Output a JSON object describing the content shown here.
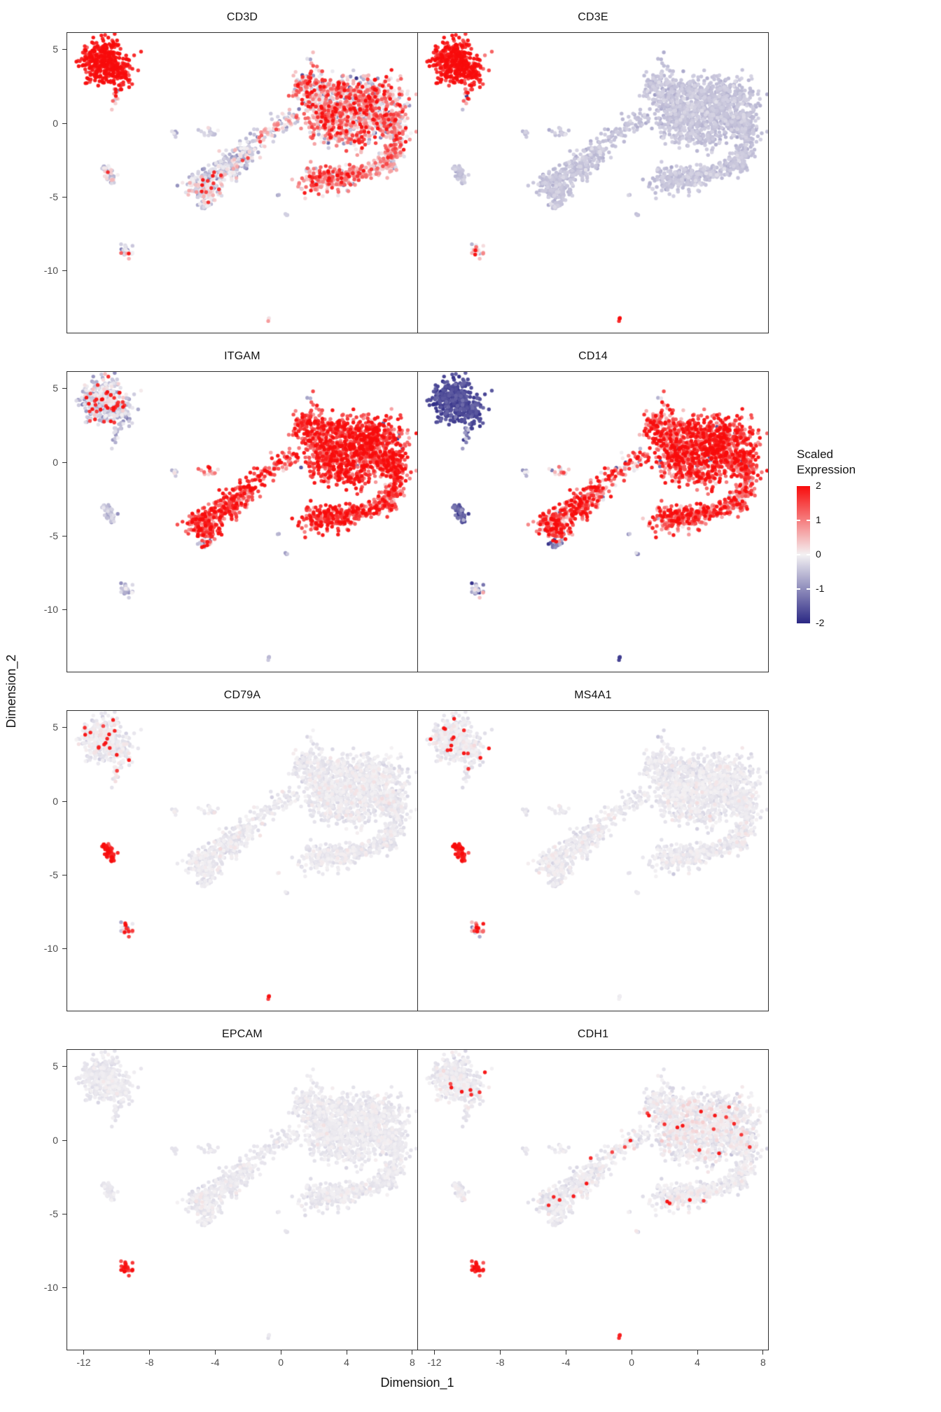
{
  "figure": {
    "xlabel": "Dimension_1",
    "ylabel": "Dimension_2"
  },
  "chart_data": {
    "type": "scatter",
    "subtype": "umap-feature-plot-grid",
    "panels": [
      "CD3D",
      "CD3E",
      "ITGAM",
      "CD14",
      "CD79A",
      "MS4A1",
      "EPCAM",
      "CDH1"
    ],
    "xlabel": "Dimension_1",
    "ylabel": "Dimension_2",
    "xlim": [
      -13,
      8.3
    ],
    "ylim": [
      -14.2,
      6.1
    ],
    "xticks": [
      -12,
      -8,
      -4,
      0,
      4,
      8
    ],
    "yticks": [
      5,
      0,
      -5,
      -10
    ],
    "grid": false,
    "legend": {
      "title": "Scaled Expression",
      "ticks": [
        2,
        1,
        0,
        -1,
        -2
      ],
      "position": "right"
    },
    "colormap": {
      "low": "#2B2884",
      "mid": "#F3F1F3",
      "high": "#F80C0C"
    },
    "baseline": {
      "CD3D": [
        -0.45,
        0.28
      ],
      "CD3E": [
        -0.5,
        0.12
      ],
      "ITGAM": [
        -0.5,
        0.28
      ],
      "CD14": [
        -0.6,
        0.45
      ],
      "CD79A": [
        -0.12,
        0.1
      ],
      "MS4A1": [
        -0.12,
        0.1
      ],
      "EPCAM": [
        -0.12,
        0.08
      ],
      "CDH1": [
        -0.12,
        0.1
      ]
    },
    "clusters": [
      {
        "id": "t-nk",
        "blobs": [
          [
            -11.3,
            4.2,
            0.6,
            0.55,
            120
          ],
          [
            -10.4,
            4.6,
            0.55,
            0.5,
            110
          ],
          [
            -10.8,
            3.4,
            0.7,
            0.45,
            90
          ],
          [
            -9.9,
            3.6,
            0.45,
            0.45,
            60
          ],
          [
            -10.9,
            5.1,
            0.35,
            0.25,
            25
          ],
          [
            -9.6,
            2.9,
            0.3,
            0.3,
            20
          ]
        ],
        "expr": {
          "CD3D": [
            1.9,
            0.3
          ],
          "CD3E": [
            1.85,
            0.3
          ],
          "ITGAM": [
            -0.45,
            0.35,
            0.1
          ],
          "CD14": [
            -1.75,
            0.2
          ],
          "CD79A": [
            -0.12,
            0.12,
            0.045
          ],
          "MS4A1": [
            -0.12,
            0.12,
            0.05
          ],
          "CDH1": [
            -0.12,
            0.1,
            0.02
          ]
        }
      },
      {
        "id": "t-tail",
        "blobs": [
          [
            -10.05,
            1.8,
            0.12,
            0.35,
            14
          ]
        ],
        "expr": {
          "CD3D": [
            0.9,
            0.9
          ],
          "CD3E": [
            0.8,
            0.9
          ],
          "CD14": [
            -1.3,
            0.5
          ],
          "CD79A": [
            -0.1,
            0.15,
            0.1
          ],
          "MS4A1": [
            -0.1,
            0.15,
            0.1
          ]
        }
      },
      {
        "id": "b-cells",
        "blobs": [
          [
            -10.55,
            -3.35,
            0.18,
            0.22,
            22
          ],
          [
            -10.3,
            -3.75,
            0.15,
            0.2,
            16
          ],
          [
            -10.75,
            -3.05,
            0.1,
            0.12,
            6
          ]
        ],
        "expr": {
          "CD3D": [
            -0.3,
            0.5,
            0.05
          ],
          "ITGAM": [
            -0.55,
            0.25
          ],
          "CD14": [
            -1.6,
            0.3
          ],
          "CD79A": [
            1.85,
            0.25
          ],
          "MS4A1": [
            1.8,
            0.3
          ]
        }
      },
      {
        "id": "epithelial",
        "blobs": [
          [
            -9.5,
            -8.45,
            0.18,
            0.18,
            14
          ],
          [
            -9.25,
            -8.75,
            0.15,
            0.15,
            10
          ]
        ],
        "expr": {
          "CD3D": [
            -0.2,
            0.5,
            0.1
          ],
          "CD3E": [
            0.0,
            0.7,
            0.1
          ],
          "ITGAM": [
            -0.55,
            0.3
          ],
          "CD14": [
            -0.9,
            0.7
          ],
          "CD79A": [
            0.5,
            1.0,
            0.15
          ],
          "MS4A1": [
            0.4,
            1.0,
            0.15
          ],
          "EPCAM": [
            1.85,
            0.25
          ],
          "CDH1": [
            1.8,
            0.3
          ]
        }
      },
      {
        "id": "singleton-bottom",
        "blobs": [
          [
            -0.7,
            -13.3,
            0.07,
            0.07,
            4
          ]
        ],
        "expr": {
          "CD3D": [
            0.2,
            0.4
          ],
          "CD3E": [
            1.8,
            0.2
          ],
          "ITGAM": [
            -0.6,
            0.2
          ],
          "CD14": [
            -1.8,
            0.1
          ],
          "CD79A": [
            1.9,
            0.2
          ],
          "MS4A1": [
            -0.1,
            0.1
          ],
          "CDH1": [
            1.8,
            0.2
          ]
        }
      },
      {
        "id": "small-mid",
        "blobs": [
          [
            -4.45,
            -0.65,
            0.28,
            0.18,
            16
          ]
        ],
        "expr": {
          "CD3D": [
            -0.4,
            0.3
          ],
          "ITGAM": [
            0.9,
            0.8
          ],
          "CD14": [
            0.3,
            0.9
          ]
        }
      },
      {
        "id": "mono-diagonal",
        "blobs": [
          [
            -4.9,
            -4.35,
            0.5,
            0.4,
            70
          ],
          [
            -4.2,
            -3.8,
            0.55,
            0.45,
            90
          ],
          [
            -3.4,
            -3.1,
            0.5,
            0.4,
            70
          ],
          [
            -2.7,
            -2.5,
            0.45,
            0.35,
            55
          ],
          [
            -2.1,
            -1.9,
            0.4,
            0.3,
            40
          ],
          [
            -4.5,
            -4.9,
            0.3,
            0.25,
            25
          ],
          [
            -1.6,
            -1.4,
            0.3,
            0.25,
            20
          ]
        ],
        "expr": {
          "CD3D": [
            -0.35,
            0.45,
            0.04
          ],
          "ITGAM": [
            1.55,
            0.5
          ],
          "CD14": [
            1.4,
            0.7,
            0,
            0.02
          ],
          "CDH1": [
            -0.12,
            0.1,
            0.02
          ]
        }
      },
      {
        "id": "mono-tip",
        "blobs": [
          [
            -4.55,
            -5.5,
            0.22,
            0.25,
            18
          ]
        ],
        "expr": {
          "CD3D": [
            -0.4,
            0.3
          ],
          "ITGAM": [
            0.3,
            1.0
          ],
          "CD14": [
            -1.2,
            0.7
          ]
        }
      },
      {
        "id": "bridge",
        "blobs": [
          [
            -1.0,
            -0.8,
            0.35,
            0.3,
            25
          ],
          [
            -0.3,
            -0.2,
            0.35,
            0.3,
            25
          ],
          [
            0.4,
            0.3,
            0.3,
            0.3,
            20
          ]
        ],
        "expr": {
          "CD3D": [
            0.1,
            0.6
          ],
          "ITGAM": [
            1.2,
            0.7
          ],
          "CD14": [
            0.9,
            0.8
          ],
          "CDH1": [
            -0.1,
            0.12,
            0.03
          ]
        }
      },
      {
        "id": "myeloid-main",
        "blobs": [
          [
            4.6,
            1.1,
            1.3,
            0.95,
            420
          ],
          [
            6.1,
            0.6,
            0.95,
            0.8,
            230
          ],
          [
            3.2,
            0.4,
            0.85,
            0.8,
            180
          ],
          [
            5.6,
            2.1,
            0.8,
            0.5,
            110
          ],
          [
            2.4,
            1.3,
            0.6,
            0.6,
            90
          ],
          [
            6.9,
            -0.3,
            0.45,
            0.5,
            60
          ],
          [
            4.0,
            -0.9,
            0.8,
            0.45,
            90
          ],
          [
            3.6,
            2.6,
            0.4,
            0.3,
            40
          ]
        ],
        "expr": {
          "CD3D": [
            0.45,
            0.8,
            0.05
          ],
          "ITGAM": [
            1.6,
            0.5,
            0,
            0.015
          ],
          "CD14": [
            1.45,
            0.6,
            0,
            0.02
          ],
          "CDH1": [
            -0.1,
            0.15,
            0.012
          ]
        }
      },
      {
        "id": "knob-top",
        "blobs": [
          [
            1.8,
            2.7,
            0.55,
            0.5,
            90
          ],
          [
            1.2,
            2.2,
            0.3,
            0.3,
            25
          ]
        ],
        "expr": {
          "CD3D": [
            0.7,
            0.8
          ],
          "ITGAM": [
            1.5,
            0.5
          ],
          "CD14": [
            1.2,
            0.7
          ],
          "CDH1": [
            -0.1,
            0.12,
            0.02
          ]
        }
      },
      {
        "id": "lower-blob",
        "blobs": [
          [
            2.3,
            -3.9,
            0.6,
            0.45,
            110
          ],
          [
            3.5,
            -3.7,
            0.55,
            0.4,
            90
          ],
          [
            4.3,
            -3.4,
            0.35,
            0.3,
            35
          ]
        ],
        "expr": {
          "CD3D": [
            0.75,
            0.8
          ],
          "ITGAM": [
            1.5,
            0.55
          ],
          "CD14": [
            1.35,
            0.65
          ],
          "CDH1": [
            -0.1,
            0.12,
            0.02
          ]
        }
      },
      {
        "id": "hook-right",
        "blobs": [
          [
            6.6,
            -2.3,
            0.4,
            0.35,
            55
          ],
          [
            6.1,
            -3.0,
            0.5,
            0.3,
            55
          ],
          [
            5.2,
            -3.35,
            0.45,
            0.25,
            35
          ],
          [
            7.0,
            -1.4,
            0.3,
            0.45,
            35
          ]
        ],
        "expr": {
          "CD3D": [
            0.5,
            0.7
          ],
          "ITGAM": [
            1.4,
            0.6
          ],
          "CD14": [
            1.1,
            0.7
          ]
        }
      },
      {
        "id": "tiny-left",
        "blobs": [
          [
            -6.4,
            -0.65,
            0.18,
            0.12,
            8
          ]
        ],
        "expr": {
          "ITGAM": [
            -0.4,
            0.3
          ],
          "CD14": [
            -0.5,
            0.6
          ]
        }
      },
      {
        "id": "strays",
        "blobs": [
          [
            0.4,
            -6.25,
            0.08,
            0.08,
            3
          ],
          [
            1.6,
            4.3,
            0.1,
            0.08,
            2
          ],
          [
            -0.2,
            -4.9,
            0.08,
            0.08,
            2
          ]
        ],
        "expr": {}
      }
    ]
  }
}
